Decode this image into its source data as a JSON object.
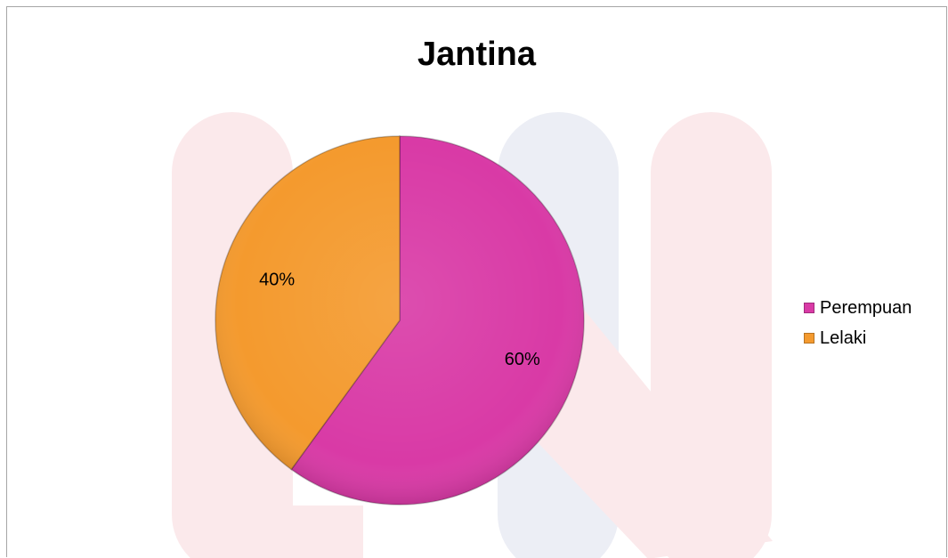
{
  "chart_data": {
    "type": "pie",
    "title": "Jantina",
    "categories": [
      "Perempuan",
      "Lelaki"
    ],
    "values": [
      60,
      40
    ],
    "data_labels": [
      "60%",
      "40%"
    ],
    "colors": [
      "#d93aa6",
      "#f49a2e"
    ],
    "legend_placement": "right"
  }
}
